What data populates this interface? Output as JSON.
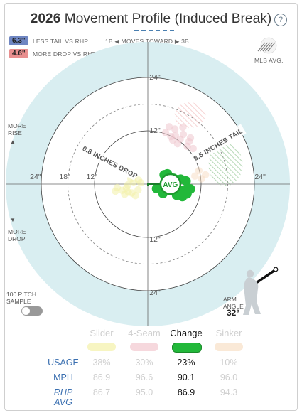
{
  "header": {
    "title_year": "2026",
    "title_text": " Movement Profile (Induced Break)",
    "help_icon": "?"
  },
  "legend": {
    "tail_badge": "6.3\"",
    "tail_badge_color": "#6f86c2",
    "tail_text": "LESS TAIL VS RHP",
    "drop_badge": "4.6\"",
    "drop_badge_color": "#e88f8f",
    "drop_text": "MORE DROP VS RHP",
    "moves_toward": "1B ◀  MOVES TOWARD  ▶ 3B",
    "mlb_avg": "MLB AVG."
  },
  "side_labels": {
    "more_rise": "MORE\nRISE",
    "up_arrow": "▲",
    "down_arrow": "▼",
    "more_drop": "MORE\nDROP",
    "sample": "100 PITCH\nSAMPLE",
    "arm_angle_label": "ARM\nANGLE",
    "arm_angle_value": "32°"
  },
  "chart_data": {
    "type": "scatter",
    "title": "2026 Movement Profile (Induced Break)",
    "rings": [
      6,
      12,
      18,
      24
    ],
    "tick_labels": {
      "top": [
        "12\"",
        "24\""
      ],
      "bottom": [
        "12\"",
        "24\""
      ],
      "left": [
        "24\"",
        "18\"",
        "12\""
      ],
      "right": [
        "24\""
      ]
    },
    "colors": {
      "change": "#22b83a",
      "slider": "#f2f0a8",
      "fourseam": "#eec7cd",
      "sinker": "#f8dfc6",
      "field": "#d9eef1",
      "inner_field": "#ffffff"
    },
    "annotations": [
      {
        "text": "0.8 INCHES DROP"
      },
      {
        "text": "8.5 INCHES TAIL"
      }
    ],
    "avg_label": "AVG",
    "avg_point": [
      5.1,
      0.0
    ],
    "series": [
      {
        "name": "Change",
        "points": [
          [
            3.7,
            2.1
          ],
          [
            4.4,
            2.3
          ],
          [
            5.0,
            1.6
          ],
          [
            5.8,
            1.3
          ],
          [
            6.5,
            1.0
          ],
          [
            7.4,
            1.1
          ],
          [
            8.6,
            0.7
          ],
          [
            3.7,
            -1.0
          ],
          [
            2.0,
            -1.0
          ],
          [
            3.4,
            -2.1
          ],
          [
            6.5,
            -2.5
          ],
          [
            7.8,
            -1.4
          ],
          [
            9.0,
            -1.0
          ],
          [
            8.0,
            -2.2
          ],
          [
            8.8,
            -2.2
          ],
          [
            9.6,
            -1.1
          ],
          [
            7.8,
            -2.8
          ],
          [
            4.2,
            -0.1
          ],
          [
            5.9,
            0.5
          ]
        ]
      },
      {
        "name": "Slider",
        "points": [
          [
            -3.2,
            0.5
          ],
          [
            -4.5,
            -0.2
          ],
          [
            -2.2,
            -1.3
          ],
          [
            -5.8,
            -1.4
          ],
          [
            -3.6,
            -2.0
          ],
          [
            -6.9,
            -0.8
          ],
          [
            -4.4,
            -1.8
          ],
          [
            -2.8,
            -2.6
          ],
          [
            -5.2,
            -2.3
          ],
          [
            -1.6,
            0.3
          ],
          [
            -2.1,
            0.9
          ],
          [
            -7.3,
            -1.6
          ],
          [
            -3.8,
            1.2
          ],
          [
            -4.8,
            -0.9
          ]
        ]
      },
      {
        "name": "4-Seam",
        "points": [
          [
            4.0,
            11.6
          ],
          [
            5.2,
            10.7
          ],
          [
            6.1,
            12.4
          ],
          [
            7.3,
            10.1
          ],
          [
            8.0,
            11.2
          ],
          [
            6.7,
            9.1
          ],
          [
            8.9,
            8.5
          ],
          [
            9.3,
            9.6
          ],
          [
            4.8,
            12.9
          ],
          [
            10.2,
            8.0
          ],
          [
            6.2,
            11.0
          ],
          [
            7.9,
            12.8
          ],
          [
            9.6,
            10.4
          ],
          [
            5.6,
            9.9
          ]
        ]
      },
      {
        "name": "Sinker",
        "points": [
          [
            11.5,
            3.0
          ],
          [
            13.0,
            2.1
          ],
          [
            12.1,
            1.2
          ],
          [
            10.6,
            1.8
          ]
        ]
      }
    ]
  },
  "table": {
    "columns": [
      {
        "name": "Slider",
        "active": false,
        "color": "#f3f1a8",
        "usage": "38%",
        "mph": "86.9",
        "rhp_avg": "86.7"
      },
      {
        "name": "4-Seam",
        "active": false,
        "color": "#f2c7cf",
        "usage": "30%",
        "mph": "96.6",
        "rhp_avg": "95.0"
      },
      {
        "name": "Change",
        "active": true,
        "color": "#22b83a",
        "usage": "23%",
        "mph": "90.1",
        "rhp_avg": "86.9"
      },
      {
        "name": "Sinker",
        "active": false,
        "color": "#f8dfc6",
        "usage": "10%",
        "mph": "96.0",
        "rhp_avg": "94.3"
      }
    ],
    "row_labels": {
      "usage": "USAGE",
      "mph": "MPH",
      "rhp_avg": "RHP AVG"
    }
  }
}
